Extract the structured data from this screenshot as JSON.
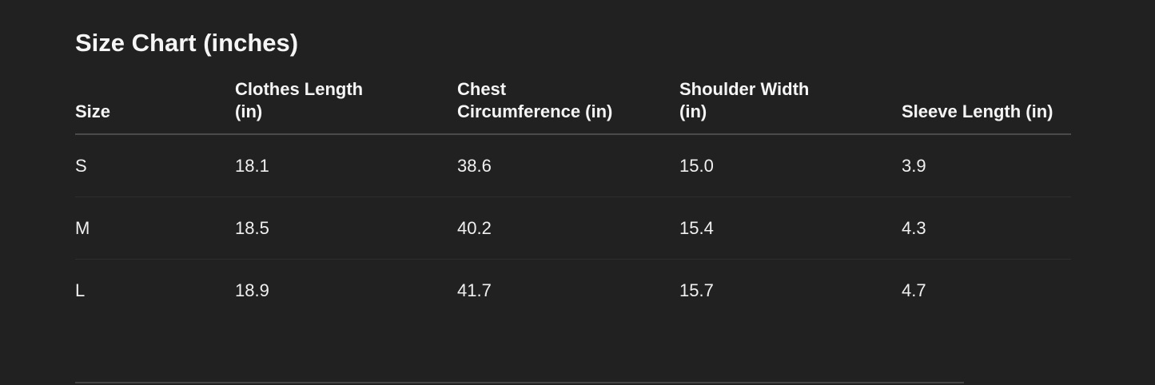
{
  "title": "Size Chart (inches)",
  "table": {
    "headers": [
      [
        "Size"
      ],
      [
        "Clothes Length",
        "(in)"
      ],
      [
        "Chest",
        "Circumference (in)"
      ],
      [
        "Shoulder Width",
        "(in)"
      ],
      [
        "Sleeve Length (in)"
      ]
    ],
    "rows": [
      [
        "S",
        "18.1",
        "38.6",
        "15.0",
        "3.9"
      ],
      [
        "M",
        "18.5",
        "40.2",
        "15.4",
        "4.3"
      ],
      [
        "L",
        "18.9",
        "41.7",
        "15.7",
        "4.7"
      ]
    ]
  }
}
